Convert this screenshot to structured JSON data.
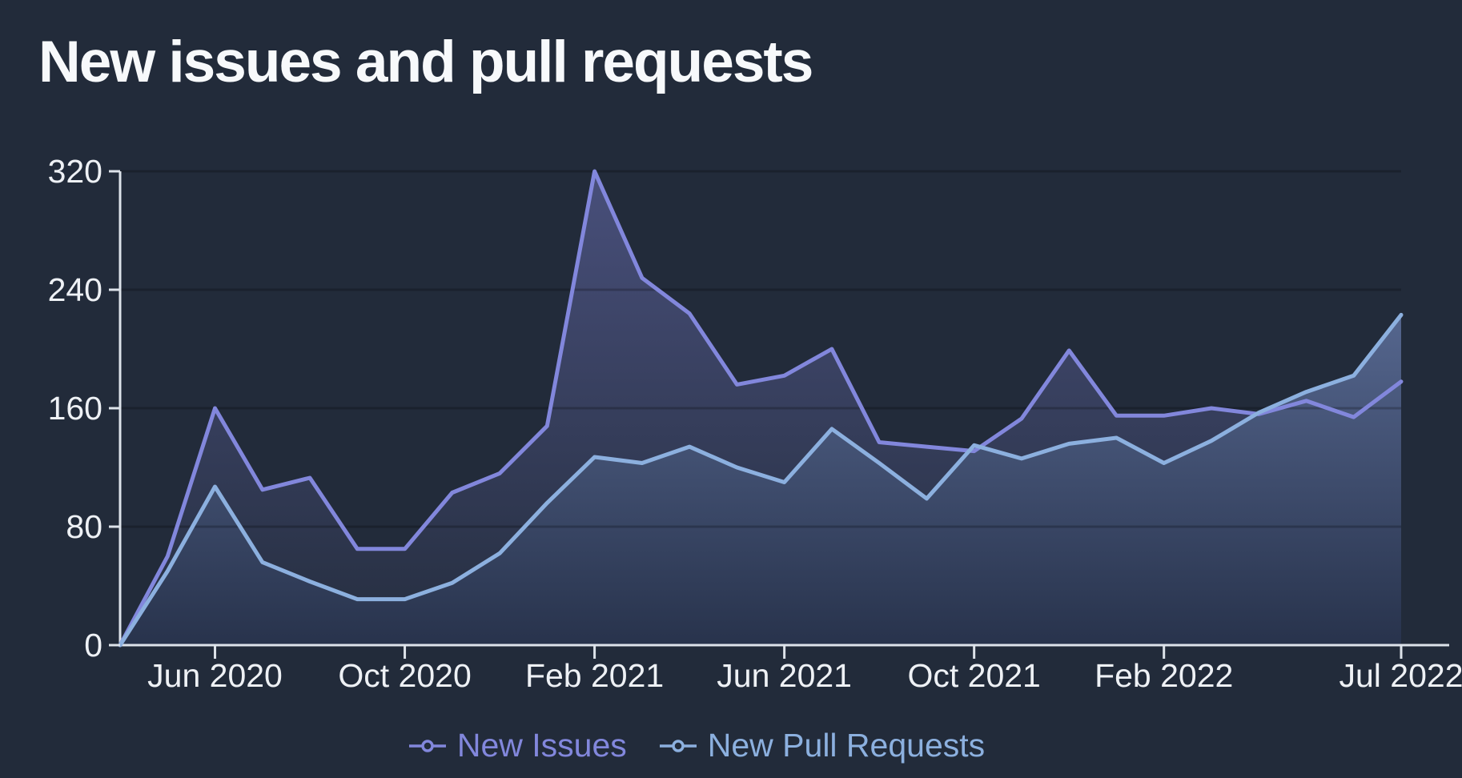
{
  "title": "New issues and pull requests",
  "colors": {
    "background": "#222B3A",
    "grid": "rgba(0,0,0,0.22)",
    "axis": "#DDE3EA",
    "tick_label": "#EEF1F5",
    "title": "#F7F9FB"
  },
  "chart_data": {
    "type": "area",
    "title": "New issues and pull requests",
    "x": [
      "Apr 2020",
      "May 2020",
      "Jun 2020",
      "Jul 2020",
      "Aug 2020",
      "Sep 2020",
      "Oct 2020",
      "Nov 2020",
      "Dec 2020",
      "Jan 2021",
      "Feb 2021",
      "Mar 2021",
      "Apr 2021",
      "May 2021",
      "Jun 2021",
      "Jul 2021",
      "Aug 2021",
      "Sep 2021",
      "Oct 2021",
      "Nov 2021",
      "Dec 2021",
      "Jan 2022",
      "Feb 2022",
      "Mar 2022",
      "Apr 2022",
      "May 2022",
      "Jun 2022",
      "Jul 2022"
    ],
    "x_tick_labels": [
      "Jun 2020",
      "Oct 2020",
      "Feb 2021",
      "Jun 2021",
      "Oct 2021",
      "Feb 2022",
      "Jul 2022"
    ],
    "y_ticks": [
      0,
      80,
      160,
      240,
      320
    ],
    "ylim": [
      0,
      320
    ],
    "grid": "horizontal",
    "legend_position": "bottom-center",
    "series": [
      {
        "name": "New Issues",
        "color": "#8287DC",
        "fill_top": "rgba(130,134,220,0.40)",
        "fill_bottom": "rgba(130,134,220,0.03)",
        "values": [
          0,
          60,
          160,
          105,
          113,
          65,
          65,
          103,
          116,
          148,
          320,
          248,
          224,
          176,
          182,
          200,
          137,
          134,
          131,
          153,
          199,
          155,
          155,
          160,
          156,
          165,
          154,
          178
        ]
      },
      {
        "name": "New Pull Requests",
        "color": "#8CB0DF",
        "fill_top": "#55668E",
        "fill_bottom": "#28334C",
        "values": [
          0,
          50,
          107,
          56,
          43,
          31,
          31,
          42,
          62,
          96,
          127,
          123,
          134,
          120,
          110,
          146,
          123,
          99,
          135,
          126,
          136,
          140,
          123,
          138,
          157,
          171,
          182,
          223
        ]
      }
    ]
  }
}
